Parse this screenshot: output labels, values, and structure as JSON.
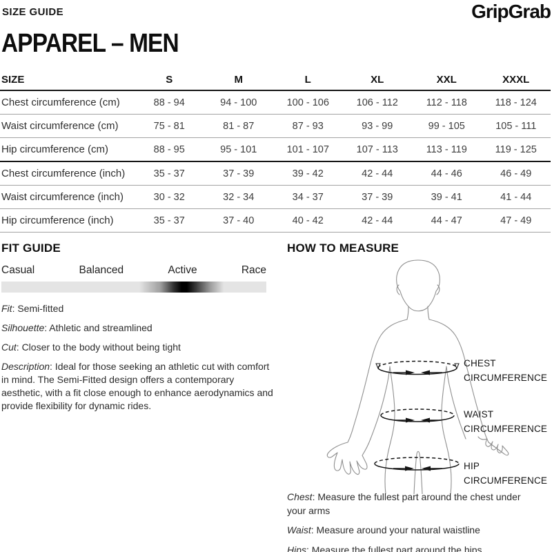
{
  "header": {
    "page_label": "SIZE GUIDE",
    "brand": "GripGrab",
    "title": "APPAREL – MEN"
  },
  "size_table": {
    "columns": [
      "SIZE",
      "S",
      "M",
      "L",
      "XL",
      "XXL",
      "XXXL"
    ],
    "rows": [
      {
        "label": "Chest circumference (cm)",
        "group": "cm",
        "values": [
          "88 - 94",
          "94 - 100",
          "100 - 106",
          "106 - 112",
          "112 - 118",
          "118 - 124"
        ]
      },
      {
        "label": "Waist circumference (cm)",
        "group": "cm",
        "values": [
          "75 - 81",
          "81 - 87",
          "87 - 93",
          "93 - 99",
          "99 - 105",
          "105 - 111"
        ]
      },
      {
        "label": "Hip circumference (cm)",
        "group": "cm",
        "values": [
          "88 - 95",
          "95 - 101",
          "101 - 107",
          "107 - 113",
          "113 - 119",
          "119 - 125"
        ]
      },
      {
        "label": "Chest circumference (inch)",
        "group": "inch",
        "values": [
          "35 - 37",
          "37 - 39",
          "39 - 42",
          "42 - 44",
          "44 - 46",
          "46 - 49"
        ]
      },
      {
        "label": "Waist circumference (inch)",
        "group": "inch",
        "values": [
          "30 - 32",
          "32 - 34",
          "34 - 37",
          "37 - 39",
          "39 - 41",
          "41 - 44"
        ]
      },
      {
        "label": "Hip circumference (inch)",
        "group": "inch",
        "values": [
          "35 - 37",
          "37 - 40",
          "40 - 42",
          "42 - 44",
          "44 - 47",
          "47 - 49"
        ]
      }
    ]
  },
  "fit_guide": {
    "title": "FIT GUIDE",
    "scale_labels": [
      "Casual",
      "Balanced",
      "Active",
      "Race"
    ],
    "details": [
      {
        "term": "Fit",
        "text": ": Semi-fitted"
      },
      {
        "term": "Silhouette",
        "text": ": Athletic and streamlined"
      },
      {
        "term": "Cut",
        "text": ": Closer to the body without being tight"
      },
      {
        "term": "Description",
        "text": ": Ideal for those seeking an athletic cut with comfort in mind. The Semi-Fitted design offers a contemporary aesthetic, with a fit close enough to enhance aerodynamics and provide flexibility for dynamic rides."
      }
    ]
  },
  "how_to_measure": {
    "title": "HOW TO MEASURE",
    "diagram_labels": [
      "CHEST CIRCUMFERENCE",
      "WAIST CIRCUMFERENCE",
      "HIP CIRCUMFERENCE"
    ],
    "notes": [
      {
        "term": "Chest",
        "text": ": Measure the fullest part around the chest under your arms"
      },
      {
        "term": "Waist",
        "text": ": Measure around your natural waistline"
      },
      {
        "term": "Hips",
        "text": ": Measure the fullest part around the hips"
      }
    ]
  },
  "colors": {
    "text_dark": "#141414",
    "row_line_gray": "#a3a3a3",
    "bar_gray": "#e4e4e4",
    "figure_outline": "#8f8f8f"
  }
}
